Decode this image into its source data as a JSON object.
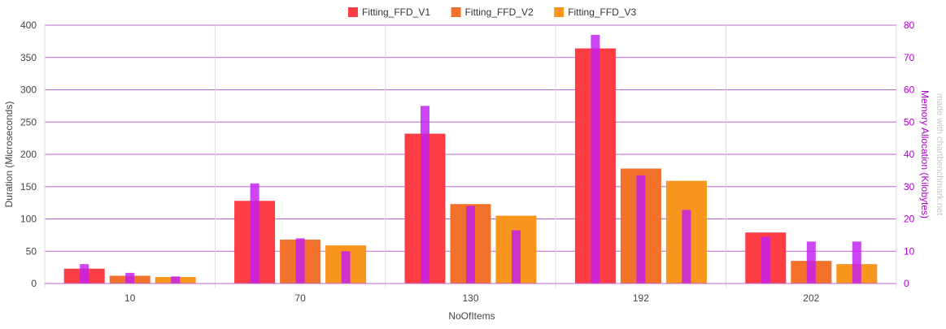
{
  "chart_data": {
    "type": "bar",
    "title": "",
    "categories": [
      "10",
      "70",
      "130",
      "192",
      "202"
    ],
    "xlabel": "NoOfItems",
    "ylabel": "Duration (Microseconds)",
    "ylim": [
      0,
      400
    ],
    "yticks": [
      0,
      50,
      100,
      150,
      200,
      250,
      300,
      350,
      400
    ],
    "y2label": "Memory Allocation (Kilobytes)",
    "y2lim": [
      0,
      80
    ],
    "y2ticks": [
      0,
      10,
      20,
      30,
      40,
      50,
      60,
      70,
      80
    ],
    "grid": true,
    "legend_position": "top-center",
    "series": [
      {
        "name": "Fitting_FFD_V1",
        "color": "#fc3d43",
        "values": [
          23,
          128,
          232,
          364,
          79
        ],
        "memory": [
          6,
          31,
          55,
          77,
          14.5
        ]
      },
      {
        "name": "Fitting_FFD_V2",
        "color": "#f2722b",
        "values": [
          12,
          68,
          123,
          178,
          35
        ],
        "memory": [
          3.3,
          14,
          24,
          33.5,
          13
        ]
      },
      {
        "name": "Fitting_FFD_V3",
        "color": "#f8951d",
        "values": [
          10,
          59,
          105,
          159,
          30
        ],
        "memory": [
          2.2,
          10,
          16.5,
          22.8,
          13
        ]
      }
    ],
    "memory_bar_color": "#c31df0"
  },
  "watermark": "made with chartbenchmark.net"
}
